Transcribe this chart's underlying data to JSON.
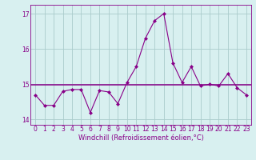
{
  "x": [
    0,
    1,
    2,
    3,
    4,
    5,
    6,
    7,
    8,
    9,
    10,
    11,
    12,
    13,
    14,
    15,
    16,
    17,
    18,
    19,
    20,
    21,
    22,
    23
  ],
  "y": [
    14.7,
    14.4,
    14.4,
    14.8,
    14.85,
    14.85,
    14.2,
    14.82,
    14.78,
    14.45,
    15.05,
    15.5,
    16.3,
    16.8,
    17.0,
    15.6,
    15.05,
    15.5,
    14.95,
    15.0,
    14.95,
    15.3,
    14.9,
    14.7
  ],
  "hline_y": 14.98,
  "line_color": "#880088",
  "bg_color": "#d8f0f0",
  "grid_color": "#aacccc",
  "xlabel": "Windchill (Refroidissement éolien,°C)",
  "ylim": [
    13.85,
    17.25
  ],
  "xlim": [
    -0.5,
    23.5
  ],
  "yticks": [
    14,
    15,
    16,
    17
  ],
  "xticks": [
    0,
    1,
    2,
    3,
    4,
    5,
    6,
    7,
    8,
    9,
    10,
    11,
    12,
    13,
    14,
    15,
    16,
    17,
    18,
    19,
    20,
    21,
    22,
    23
  ],
  "marker": "D",
  "markersize": 2.0,
  "linewidth": 0.8,
  "tick_fontsize": 5.5,
  "xlabel_fontsize": 6.0
}
